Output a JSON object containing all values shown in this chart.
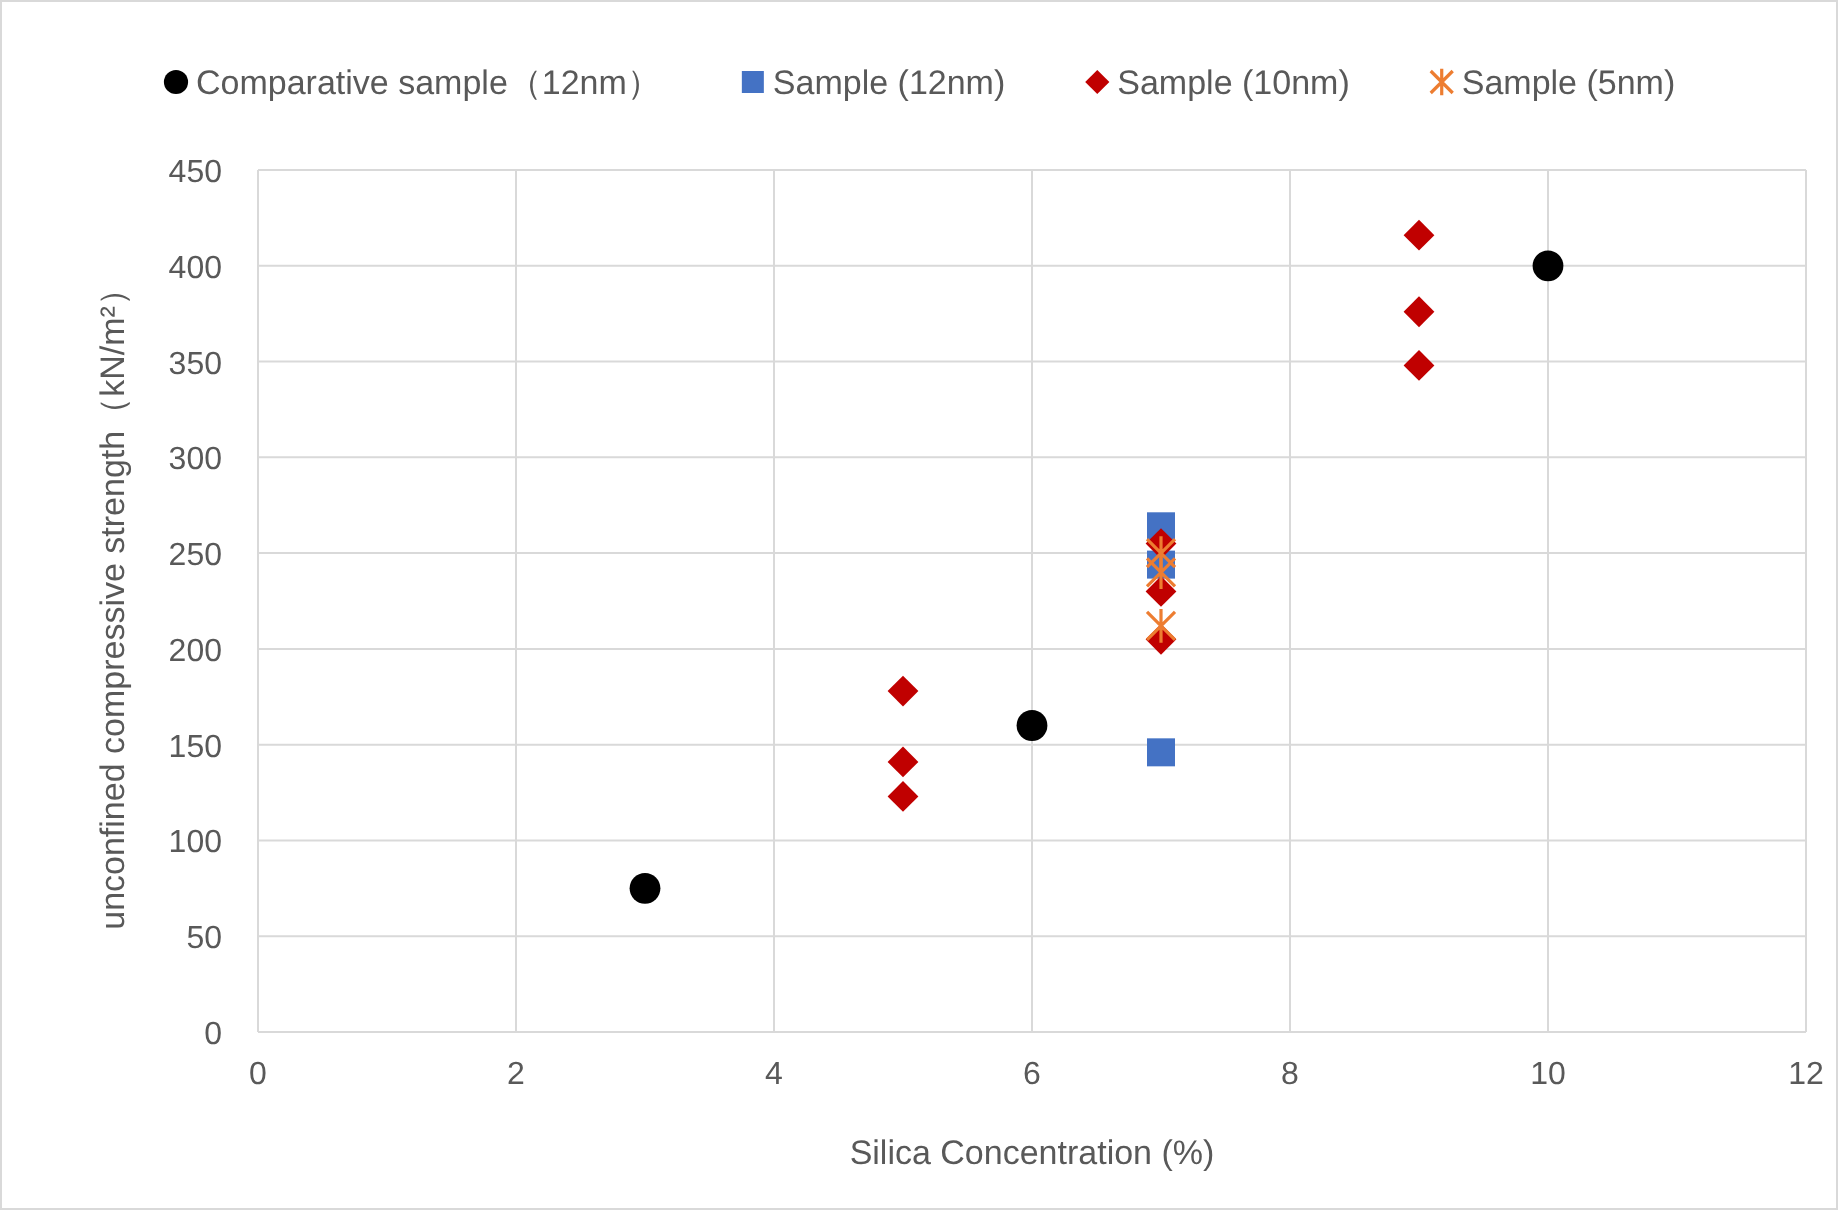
{
  "chart_data": {
    "type": "scatter",
    "xlabel": "Silica Concentration (%)",
    "ylabel": "unconfined compressive strength（kN/m²）",
    "xlim": [
      0,
      12
    ],
    "xticks": [
      0,
      2,
      4,
      6,
      8,
      10,
      12
    ],
    "ylim": [
      0,
      450
    ],
    "yticks": [
      0,
      50,
      100,
      150,
      200,
      250,
      300,
      350,
      400,
      450
    ],
    "grid": true,
    "legend": "top",
    "series": [
      {
        "name": "Comparative sample（12nm）",
        "color": "#000000",
        "marker": "circle",
        "x": [
          3,
          6,
          10
        ],
        "values": [
          75,
          160,
          400
        ]
      },
      {
        "name": "Sample (12nm)",
        "color": "#4472c4",
        "marker": "square",
        "x": [
          7,
          7,
          7
        ],
        "values": [
          264,
          244,
          146
        ]
      },
      {
        "name": "Sample (10nm)",
        "color": "#c00000",
        "marker": "diamond",
        "x": [
          5,
          5,
          5,
          7,
          7,
          7,
          9,
          9,
          9
        ],
        "values": [
          178,
          141,
          123,
          255,
          230,
          205,
          416,
          376,
          348
        ]
      },
      {
        "name": "Sample (5nm)",
        "color": "#ed7d31",
        "marker": "cross",
        "x": [
          7,
          7,
          7
        ],
        "values": [
          250,
          240,
          212
        ]
      }
    ]
  }
}
